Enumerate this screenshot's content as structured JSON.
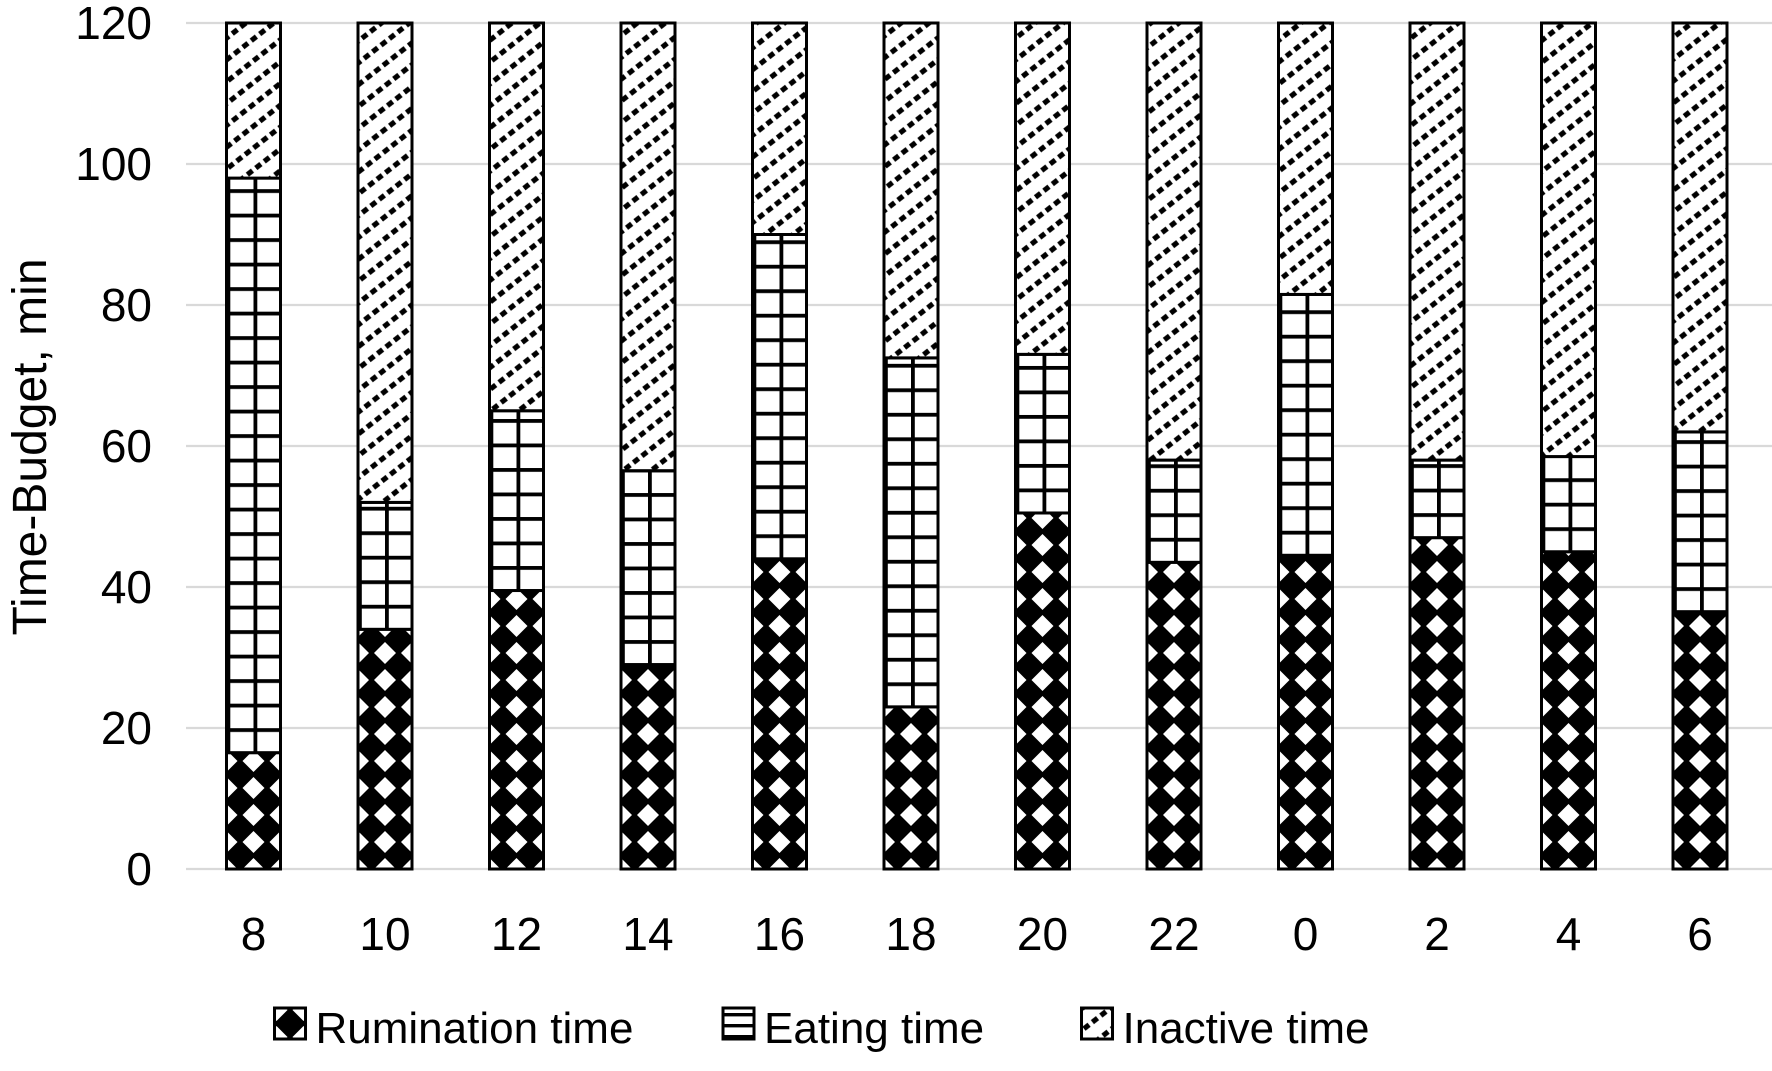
{
  "chart_data": {
    "type": "bar",
    "stacked": true,
    "title": "",
    "xlabel": "",
    "ylabel": "Time-Budget, min",
    "ylim": [
      0,
      120
    ],
    "yticks": [
      0,
      20,
      40,
      60,
      80,
      100,
      120
    ],
    "grid": "horizontal",
    "legend_position": "bottom",
    "categories": [
      "8",
      "10",
      "12",
      "14",
      "16",
      "18",
      "20",
      "22",
      "0",
      "2",
      "4",
      "6"
    ],
    "series": [
      {
        "name": "Rumination time",
        "pattern": "diamond-checker",
        "values": [
          16.5,
          34,
          39.5,
          29,
          44,
          23,
          50.5,
          43.5,
          44.5,
          47,
          45,
          36.5
        ]
      },
      {
        "name": "Eating time",
        "pattern": "grid-squares",
        "values": [
          81.5,
          18,
          25.5,
          27.5,
          46,
          49.5,
          22.5,
          14.5,
          37,
          11,
          13.5,
          25.5
        ]
      },
      {
        "name": "Inactive time",
        "pattern": "diagonal-hatch",
        "values": [
          22,
          68,
          55,
          63.5,
          30,
          47.5,
          47,
          62,
          38.5,
          62,
          61.5,
          58
        ]
      }
    ],
    "colors": {
      "foreground": "#000000",
      "background": "#ffffff",
      "gridline": "#d9d9d9"
    }
  }
}
